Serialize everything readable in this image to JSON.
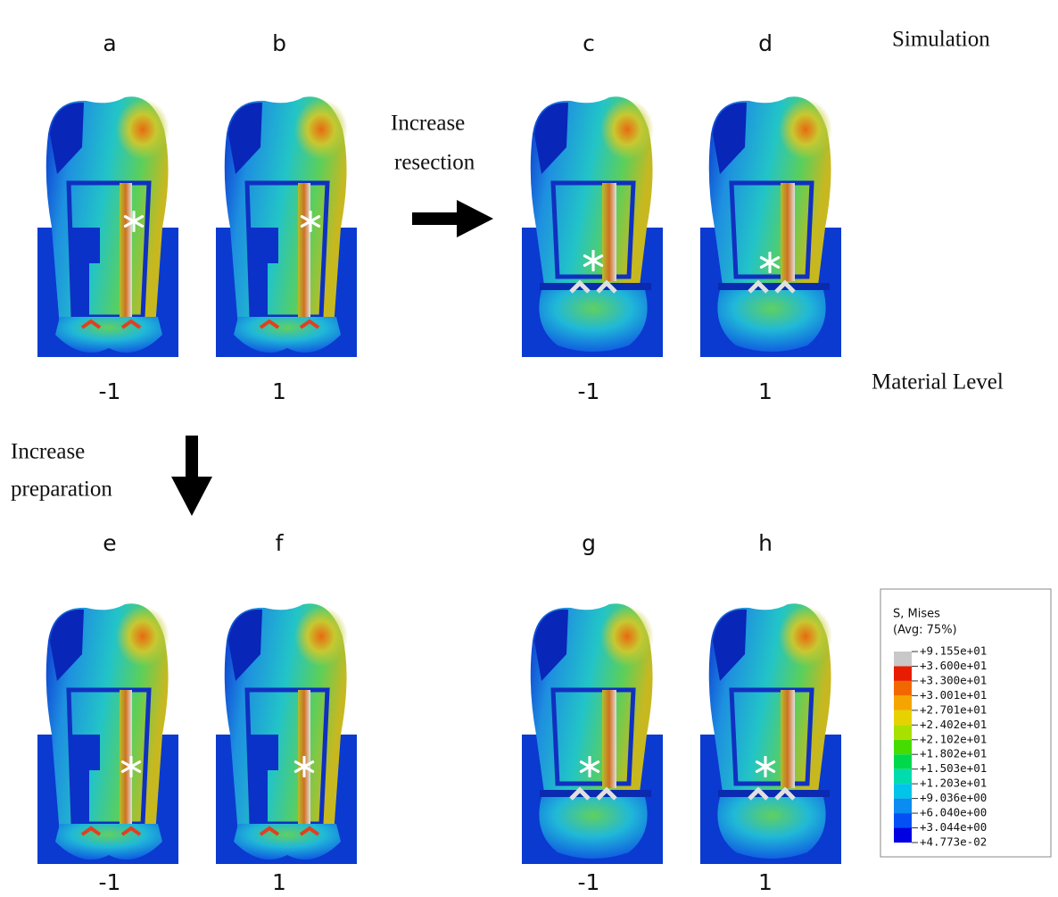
{
  "simulation_label": "Simulation",
  "material_level_label": "Material Level",
  "resection_arrow": [
    "Increase",
    "resection"
  ],
  "preparation_arrow": [
    "Increase",
    "preparation"
  ],
  "panels": [
    {
      "letter": "a",
      "level": "-1"
    },
    {
      "letter": "b",
      "level": "1"
    },
    {
      "letter": "c",
      "level": "-1"
    },
    {
      "letter": "d",
      "level": "1"
    },
    {
      "letter": "e",
      "level": "-1"
    },
    {
      "letter": "f",
      "level": "1"
    },
    {
      "letter": "g",
      "level": "-1"
    },
    {
      "letter": "h",
      "level": "1"
    }
  ],
  "legend": {
    "title": "S, Mises",
    "subtitle": "(Avg: 75%)",
    "entries": [
      "+9.155e+01",
      "+3.600e+01",
      "+3.300e+01",
      "+3.001e+01",
      "+2.701e+01",
      "+2.402e+01",
      "+2.102e+01",
      "+1.802e+01",
      "+1.503e+01",
      "+1.203e+01",
      "+9.036e+00",
      "+6.040e+00",
      "+3.044e+00",
      "+4.773e-02"
    ],
    "colors": [
      "#c8c8c8",
      "#e81c00",
      "#f26800",
      "#f5a500",
      "#e6d200",
      "#a8e000",
      "#46dc00",
      "#00d84c",
      "#00dcae",
      "#00c4e8",
      "#0a8cf0",
      "#0450f5",
      "#0000e0"
    ]
  }
}
